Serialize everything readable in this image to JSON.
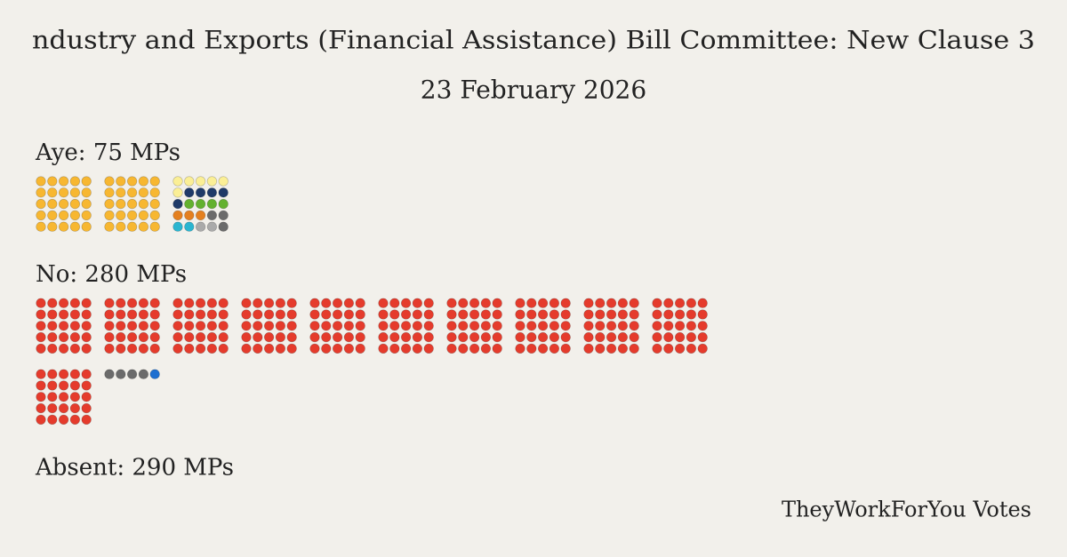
{
  "chart_data": {
    "type": "vote-dots",
    "title": "ndustry and Exports (Financial Assistance) Bill Committee: New Clause 3",
    "subtitle": "23 February 2026",
    "groups": [
      {
        "label": "Aye: 75 MPs",
        "parties": [
          {
            "color": "#f7b731",
            "count": 50
          },
          {
            "color": "#fbef96",
            "count": 6
          },
          {
            "color": "#1f3a68",
            "count": 5
          },
          {
            "color": "#63b12f",
            "count": 4
          },
          {
            "color": "#e4801f",
            "count": 3
          },
          {
            "color": "#6b6b6b",
            "count": 2
          },
          {
            "color": "#2bb5d0",
            "count": 2
          },
          {
            "color": "#aaaaaa",
            "count": 2
          },
          {
            "color": "#6b6b6b",
            "count": 1
          }
        ]
      },
      {
        "label": "No: 280 MPs",
        "parties": [
          {
            "color": "#e53b2c",
            "count": 275
          },
          {
            "color": "#6b6b6b",
            "count": 4
          },
          {
            "color": "#1e6fd0",
            "count": 1
          }
        ]
      },
      {
        "label": "Absent: 290 MPs",
        "parties": []
      }
    ],
    "footer": "TheyWorkForYou Votes"
  }
}
